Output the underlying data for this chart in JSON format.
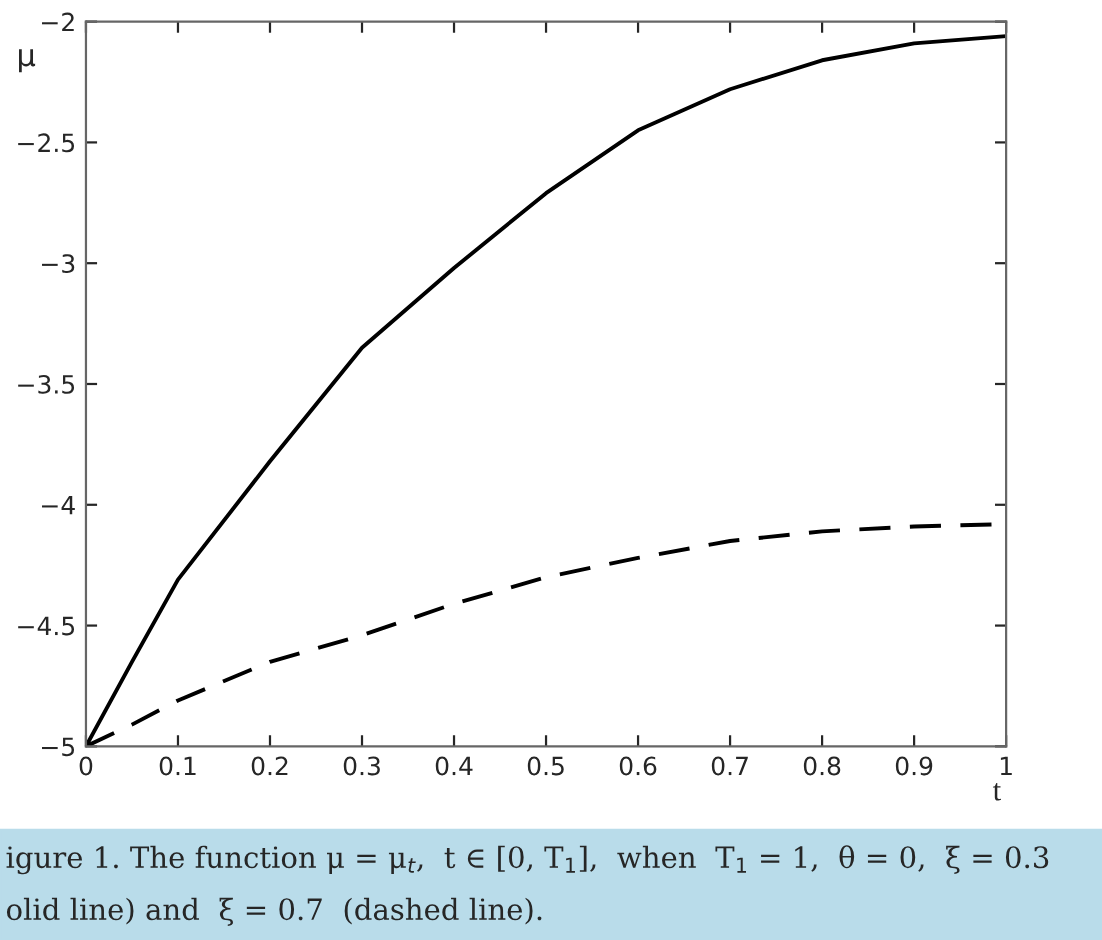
{
  "chart_data": {
    "type": "line",
    "xlabel": "t",
    "ylabel": "μ",
    "x": [
      0,
      0.05,
      0.1,
      0.2,
      0.3,
      0.4,
      0.5,
      0.6,
      0.7,
      0.8,
      0.9,
      1
    ],
    "series": [
      {
        "color": "#000000",
        "line_style": "solid",
        "values": [
          -5,
          -4.65,
          -4.31,
          -3.82,
          -3.35,
          -3.02,
          -2.71,
          -2.45,
          -2.28,
          -2.16,
          -2.09,
          -2.06
        ]
      },
      {
        "color": "#000000",
        "line_style": "dashed",
        "values": [
          -5,
          -4.91,
          -4.81,
          -4.65,
          -4.54,
          -4.41,
          -4.3,
          -4.22,
          -4.15,
          -4.11,
          -4.09,
          -4.08
        ]
      }
    ],
    "xlim": [
      0,
      1
    ],
    "ylim": [
      -5,
      -2
    ],
    "xticks": [
      0,
      0.1,
      0.2,
      0.3,
      0.4,
      0.5,
      0.6,
      0.7,
      0.8,
      0.9,
      1
    ],
    "yticks": [
      {
        "value": -5,
        "label": "−5"
      },
      {
        "value": -4.5,
        "label": "−4.5"
      },
      {
        "value": -4,
        "label": "−4"
      },
      {
        "value": -3.5,
        "label": "−3.5"
      },
      {
        "value": -3,
        "label": "−3"
      },
      {
        "value": -2.5,
        "label": "−2.5"
      },
      {
        "value": -2,
        "label": "−2"
      }
    ],
    "grid": false,
    "legend": false,
    "marker": "none",
    "annotations": [
      "igure 1. The function μ = μ$_{t}$,  t ∈ [0, T$_{1}$],  when  T$_{1}$ = 1,  θ = 0,  ξ = 0.3",
      "olid line) and  ξ = 0.7  (dashed line)."
    ]
  }
}
